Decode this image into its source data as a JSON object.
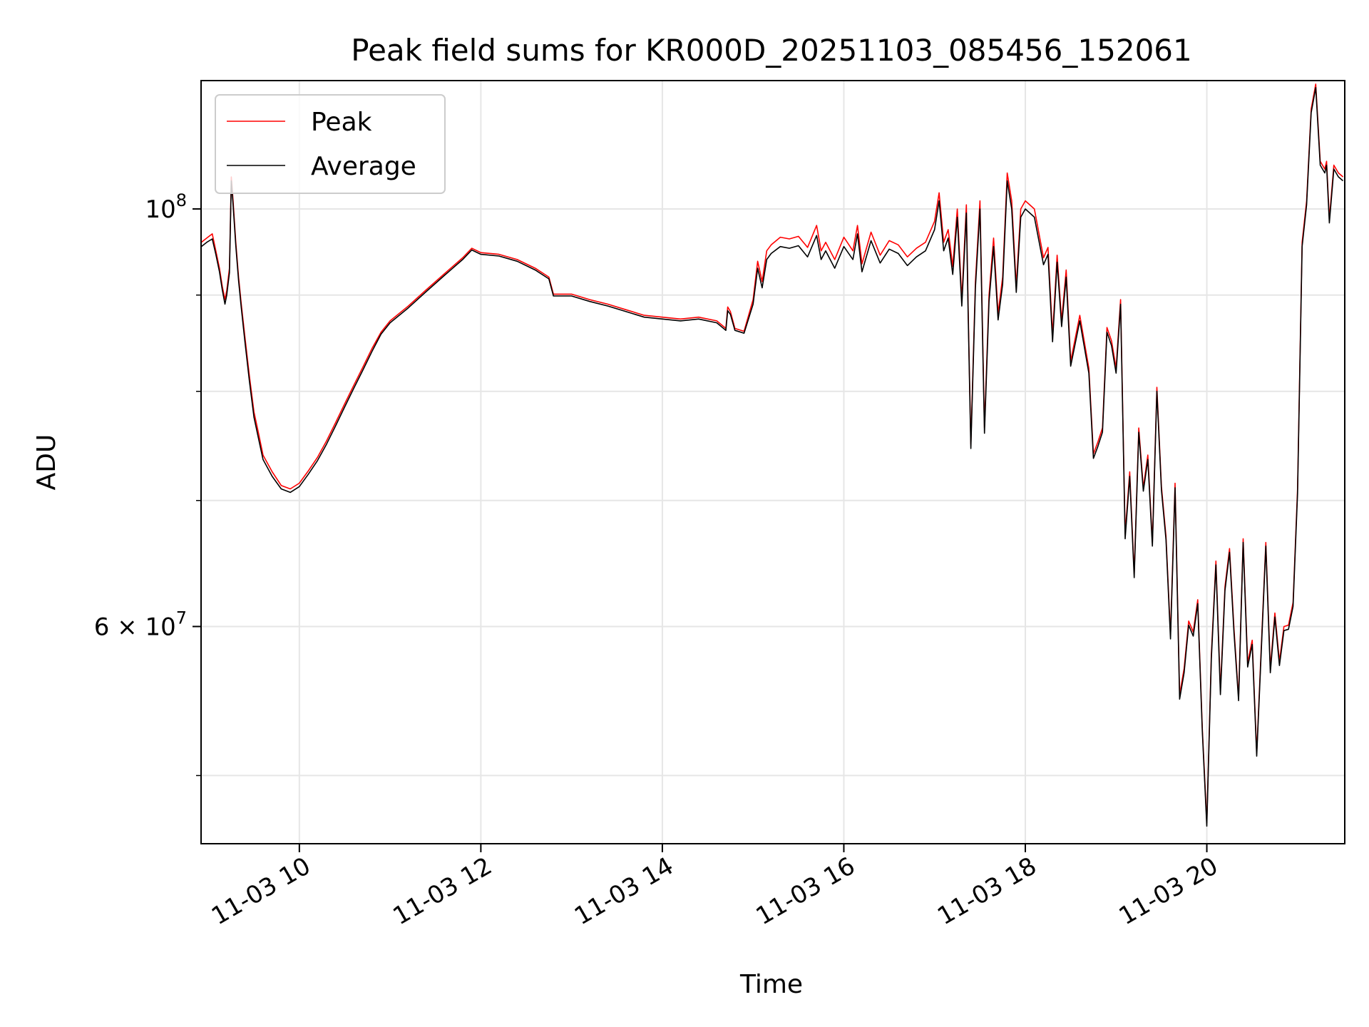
{
  "chart_data": {
    "type": "line",
    "title": "Peak field sums for KR000D_20251103_085456_152061",
    "xlabel": "Time",
    "ylabel": "ADU",
    "yscale": "log",
    "xlim": [
      8.917,
      21.52
    ],
    "ylim": [
      46000000,
      117000000
    ],
    "x_ticks": [
      {
        "value": 10,
        "label": "11-03 10"
      },
      {
        "value": 12,
        "label": "11-03 12"
      },
      {
        "value": 14,
        "label": "11-03 14"
      },
      {
        "value": 16,
        "label": "11-03 16"
      },
      {
        "value": 18,
        "label": "11-03 18"
      },
      {
        "value": 20,
        "label": "11-03 20"
      }
    ],
    "y_major_ticks": [
      {
        "value": 100000000,
        "base": "10",
        "exp": "8",
        "mant": ""
      },
      {
        "value": 60000000,
        "base": "10",
        "exp": "7",
        "mant": "6 × "
      }
    ],
    "y_minor_ticks": [
      50000000,
      70000000,
      80000000,
      90000000
    ],
    "grid": true,
    "legend_position": "upper-left",
    "series": [
      {
        "name": "Peak",
        "color": "#ff0000",
        "x": [
          8.92,
          8.98,
          9.04,
          9.08,
          9.12,
          9.15,
          9.18,
          9.2,
          9.23,
          9.25,
          9.27,
          9.3,
          9.33,
          9.36,
          9.4,
          9.45,
          9.5,
          9.55,
          9.6,
          9.7,
          9.8,
          9.9,
          10.0,
          10.1,
          10.2,
          10.3,
          10.4,
          10.5,
          10.6,
          10.7,
          10.8,
          10.9,
          11.0,
          11.2,
          11.4,
          11.6,
          11.8,
          11.9,
          12.0,
          12.2,
          12.4,
          12.6,
          12.75,
          12.8,
          13.0,
          13.2,
          13.4,
          13.6,
          13.8,
          14.0,
          14.2,
          14.4,
          14.6,
          14.7,
          14.72,
          14.75,
          14.8,
          14.9,
          15.0,
          15.05,
          15.1,
          15.15,
          15.2,
          15.3,
          15.4,
          15.5,
          15.6,
          15.7,
          15.75,
          15.8,
          15.9,
          16.0,
          16.1,
          16.15,
          16.2,
          16.3,
          16.4,
          16.5,
          16.6,
          16.7,
          16.8,
          16.9,
          17.0,
          17.05,
          17.1,
          17.15,
          17.2,
          17.25,
          17.3,
          17.35,
          17.37,
          17.4,
          17.45,
          17.5,
          17.55,
          17.6,
          17.65,
          17.7,
          17.75,
          17.8,
          17.85,
          17.9,
          17.95,
          18.0,
          18.1,
          18.2,
          18.25,
          18.3,
          18.35,
          18.4,
          18.45,
          18.5,
          18.6,
          18.7,
          18.75,
          18.8,
          18.85,
          18.9,
          18.95,
          19.0,
          19.05,
          19.1,
          19.15,
          19.2,
          19.25,
          19.3,
          19.35,
          19.4,
          19.45,
          19.5,
          19.55,
          19.6,
          19.65,
          19.7,
          19.75,
          19.8,
          19.85,
          19.9,
          19.95,
          20.0,
          20.05,
          20.1,
          20.15,
          20.2,
          20.25,
          20.3,
          20.35,
          20.4,
          20.45,
          20.5,
          20.55,
          20.6,
          20.65,
          20.7,
          20.75,
          20.8,
          20.85,
          20.9,
          20.95,
          21.0,
          21.05,
          21.1,
          21.15,
          21.2,
          21.25,
          21.3,
          21.32,
          21.35,
          21.4,
          21.45,
          21.5
        ],
        "values": [
          96000000,
          96500000,
          97000000,
          95000000,
          93000000,
          91000000,
          89500000,
          90500000,
          93000000,
          104000000,
          101000000,
          96000000,
          92000000,
          89000000,
          85500000,
          81500000,
          78000000,
          76000000,
          74000000,
          72500000,
          71300000,
          71000000,
          71500000,
          72600000,
          73800000,
          75300000,
          77000000,
          78800000,
          80600000,
          82400000,
          84300000,
          86000000,
          87200000,
          88800000,
          90600000,
          92400000,
          94200000,
          95300000,
          94800000,
          94600000,
          94000000,
          93000000,
          92000000,
          90100000,
          90100000,
          89500000,
          89000000,
          88400000,
          87800000,
          87600000,
          87400000,
          87600000,
          87200000,
          86400000,
          88700000,
          88200000,
          86400000,
          86100000,
          89500000,
          93800000,
          91500000,
          95000000,
          95700000,
          96600000,
          96400000,
          96700000,
          95400000,
          98000000,
          95000000,
          96000000,
          94000000,
          96600000,
          95000000,
          98000000,
          93500000,
          97200000,
          94500000,
          96200000,
          95700000,
          94300000,
          95300000,
          96000000,
          98500000,
          102000000,
          96000000,
          97500000,
          93200000,
          100000000,
          89500000,
          100500000,
          88700000,
          75000000,
          91500000,
          101000000,
          76500000,
          90000000,
          96500000,
          88000000,
          92000000,
          104500000,
          101000000,
          91000000,
          100000000,
          101000000,
          100000000,
          94200000,
          95400000,
          85700000,
          94500000,
          87200000,
          92800000,
          83000000,
          87800000,
          82300000,
          74100000,
          75200000,
          76500000,
          86500000,
          85100000,
          82300000,
          89500000,
          67200000,
          72500000,
          64000000,
          76500000,
          71100000,
          74000000,
          66500000,
          80400000,
          71200000,
          67000000,
          59400000,
          71500000,
          55200000,
          57000000,
          60400000,
          59600000,
          62000000,
          53000000,
          47200000,
          58000000,
          65000000,
          55500000,
          63000000,
          66000000,
          59800000,
          55000000,
          66800000,
          57400000,
          59000000,
          51400000,
          58500000,
          66500000,
          57000000,
          61000000,
          57500000,
          60000000,
          60100000,
          61800000,
          71000000,
          96000000,
          101000000,
          113000000,
          116500000,
          106000000,
          105000000,
          106000000,
          98800000,
          105500000,
          104500000,
          104000000
        ]
      },
      {
        "name": "Average",
        "color": "#000000",
        "x": [
          8.92,
          8.98,
          9.04,
          9.08,
          9.12,
          9.15,
          9.18,
          9.2,
          9.23,
          9.25,
          9.27,
          9.3,
          9.33,
          9.36,
          9.4,
          9.45,
          9.5,
          9.55,
          9.6,
          9.7,
          9.8,
          9.9,
          10.0,
          10.1,
          10.2,
          10.3,
          10.4,
          10.5,
          10.6,
          10.7,
          10.8,
          10.9,
          11.0,
          11.2,
          11.4,
          11.6,
          11.8,
          11.9,
          12.0,
          12.2,
          12.4,
          12.6,
          12.75,
          12.8,
          13.0,
          13.2,
          13.4,
          13.6,
          13.8,
          14.0,
          14.2,
          14.4,
          14.6,
          14.7,
          14.72,
          14.75,
          14.8,
          14.9,
          15.0,
          15.05,
          15.1,
          15.15,
          15.2,
          15.3,
          15.4,
          15.5,
          15.6,
          15.7,
          15.75,
          15.8,
          15.9,
          16.0,
          16.1,
          16.15,
          16.2,
          16.3,
          16.4,
          16.5,
          16.6,
          16.7,
          16.8,
          16.9,
          17.0,
          17.05,
          17.1,
          17.15,
          17.2,
          17.25,
          17.3,
          17.35,
          17.37,
          17.4,
          17.45,
          17.5,
          17.55,
          17.6,
          17.65,
          17.7,
          17.75,
          17.8,
          17.85,
          17.9,
          17.95,
          18.0,
          18.1,
          18.2,
          18.25,
          18.3,
          18.35,
          18.4,
          18.45,
          18.5,
          18.6,
          18.7,
          18.75,
          18.8,
          18.85,
          18.9,
          18.95,
          19.0,
          19.05,
          19.1,
          19.15,
          19.2,
          19.25,
          19.3,
          19.35,
          19.4,
          19.45,
          19.5,
          19.55,
          19.6,
          19.65,
          19.7,
          19.75,
          19.8,
          19.85,
          19.9,
          19.95,
          20.0,
          20.05,
          20.1,
          20.15,
          20.2,
          20.25,
          20.3,
          20.35,
          20.4,
          20.45,
          20.5,
          20.55,
          20.6,
          20.65,
          20.7,
          20.75,
          20.8,
          20.85,
          20.9,
          20.95,
          21.0,
          21.05,
          21.1,
          21.15,
          21.2,
          21.25,
          21.3,
          21.32,
          21.35,
          21.4,
          21.45,
          21.5
        ],
        "values": [
          95500000,
          96000000,
          96400000,
          94600000,
          92600000,
          90600000,
          89000000,
          90000000,
          92500000,
          103500000,
          100500000,
          95600000,
          91600000,
          88600000,
          85000000,
          81000000,
          77500000,
          75500000,
          73600000,
          72100000,
          71000000,
          70700000,
          71200000,
          72300000,
          73500000,
          75000000,
          76700000,
          78500000,
          80300000,
          82100000,
          84000000,
          85800000,
          87000000,
          88600000,
          90400000,
          92200000,
          94000000,
          95100000,
          94600000,
          94400000,
          93800000,
          92800000,
          91800000,
          89900000,
          89900000,
          89300000,
          88800000,
          88200000,
          87600000,
          87400000,
          87200000,
          87400000,
          87000000,
          86200000,
          88300000,
          87900000,
          86200000,
          85900000,
          89000000,
          93000000,
          90800000,
          94000000,
          94700000,
          95500000,
          95300000,
          95600000,
          94300000,
          96800000,
          94000000,
          95000000,
          93000000,
          95500000,
          94000000,
          97000000,
          92600000,
          96200000,
          93600000,
          95200000,
          94700000,
          93300000,
          94300000,
          95000000,
          97500000,
          101000000,
          95000000,
          96500000,
          92300000,
          99000000,
          88800000,
          99500000,
          88000000,
          74600000,
          90800000,
          100000000,
          76000000,
          89300000,
          95500000,
          87300000,
          91200000,
          103500000,
          100000000,
          90300000,
          99000000,
          100000000,
          99000000,
          93400000,
          94600000,
          85000000,
          93700000,
          86600000,
          92000000,
          82500000,
          87200000,
          81800000,
          73700000,
          74800000,
          76100000,
          86000000,
          84600000,
          81800000,
          89000000,
          66800000,
          72100000,
          63700000,
          76100000,
          70800000,
          73600000,
          66200000,
          80000000,
          70900000,
          66700000,
          59100000,
          71100000,
          54900000,
          56700000,
          60100000,
          59300000,
          61700000,
          52800000,
          47000000,
          57700000,
          64700000,
          55200000,
          62700000,
          65700000,
          59500000,
          54800000,
          66500000,
          57100000,
          58700000,
          51200000,
          58200000,
          66200000,
          56700000,
          60700000,
          57200000,
          59700000,
          59800000,
          61500000,
          70600000,
          95500000,
          100500000,
          112500000,
          116000000,
          105500000,
          104500000,
          105500000,
          98300000,
          105000000,
          104000000,
          103500000
        ]
      }
    ]
  }
}
